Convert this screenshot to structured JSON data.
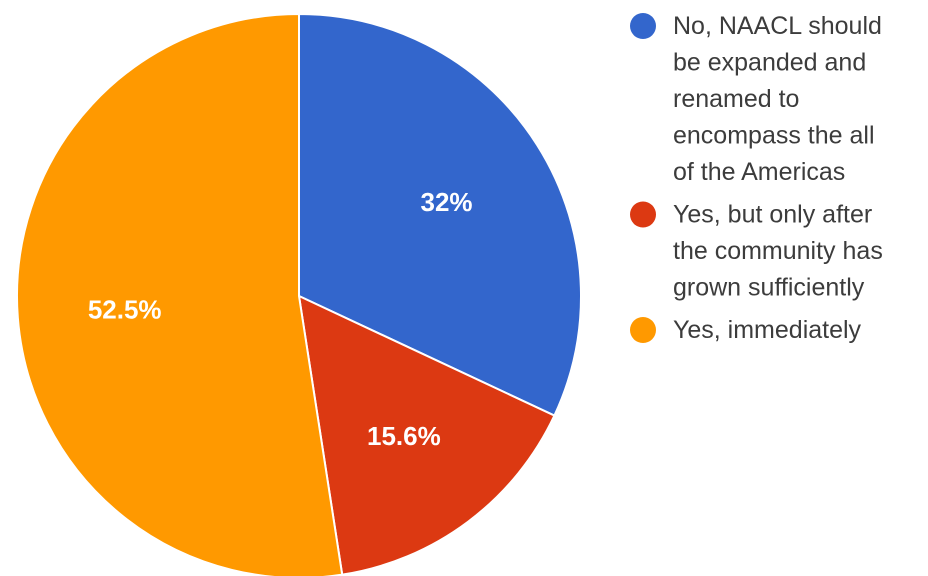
{
  "chart_data": {
    "type": "pie",
    "start_angle_deg": 0,
    "direction": "clockwise",
    "legend_position": "right",
    "slices": [
      {
        "label_lines": [
          "No, NAACL should",
          "be expanded and",
          "renamed to",
          "encompass the all",
          "of the Americas"
        ],
        "value": 32,
        "value_label": "32%",
        "color": "#3366cc"
      },
      {
        "label_lines": [
          "Yes, but only after",
          "the community has",
          "grown sufficiently"
        ],
        "value": 15.6,
        "value_label": "15.6%",
        "color": "#dc3912"
      },
      {
        "label_lines": [
          "Yes, immediately"
        ],
        "value": 52.5,
        "value_label": "52.5%",
        "color": "#ff9900"
      }
    ]
  }
}
